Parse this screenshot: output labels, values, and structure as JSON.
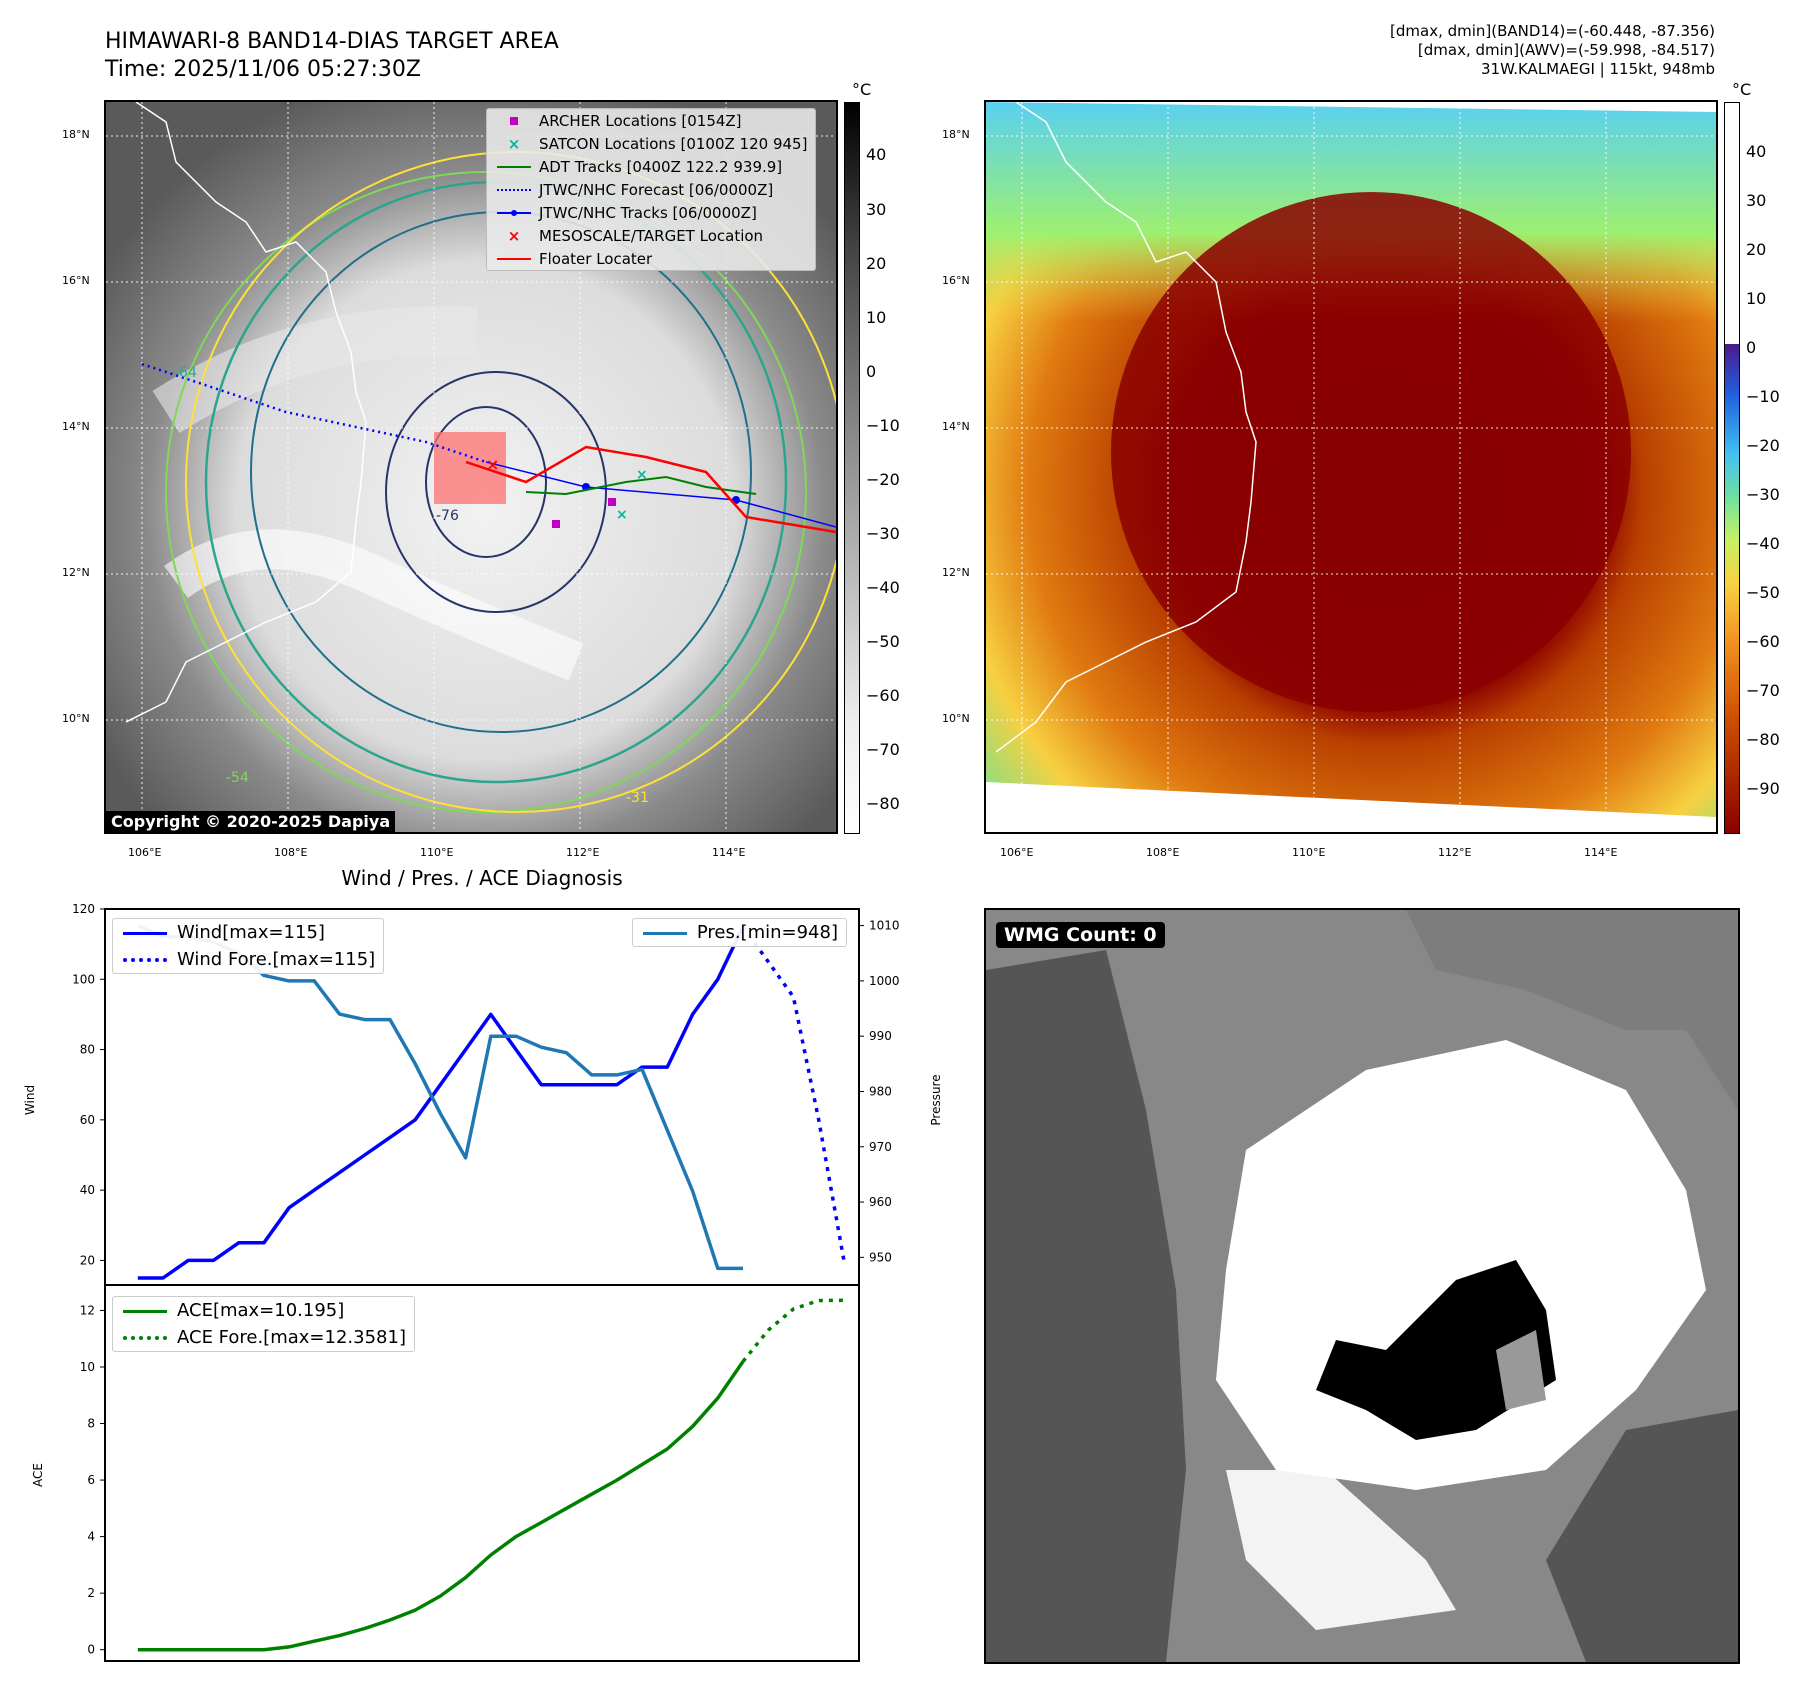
{
  "header": {
    "title_line1": "HIMAWARI-8 BAND14-DIAS TARGET AREA",
    "title_line2": "Time: 2025/11/06 05:27:30Z",
    "info_line1": "[dmax, dmin](BAND14)=(-60.448, -87.356)",
    "info_line2": "[dmax, dmin](AWV)=(-59.998, -84.517)",
    "info_line3": "31W.KALMAEGI | 115kt, 948mb"
  },
  "map_axes": {
    "lon_labels": [
      "106°E",
      "108°E",
      "110°E",
      "112°E",
      "114°E"
    ],
    "lat_labels": [
      "18°N",
      "16°N",
      "14°N",
      "12°N",
      "10°N"
    ]
  },
  "ir_panel": {
    "legend": [
      {
        "label": "ARCHER Locations [0154Z]",
        "symbol": "square",
        "color": "#c000c0"
      },
      {
        "label": "SATCON Locations [0100Z 120 945]",
        "symbol": "x",
        "color": "#00b8a0"
      },
      {
        "label": "ADT Tracks [0400Z 122.2 939.9]",
        "symbol": "line",
        "color": "#008000"
      },
      {
        "label": "JTWC/NHC Forecast [06/0000Z]",
        "symbol": "dotted",
        "color": "#0000ff"
      },
      {
        "label": "JTWC/NHC Tracks [06/0000Z]",
        "symbol": "line-dot",
        "color": "#0000ff"
      },
      {
        "label": "MESOSCALE/TARGET Location",
        "symbol": "x",
        "color": "#ff0000"
      },
      {
        "label": "Floater Locater",
        "symbol": "line",
        "color": "#ff0000"
      }
    ],
    "contour_labels": [
      "-64",
      "-54",
      "-31",
      "-76"
    ],
    "copyright": "Copyright © 2020-2025 Dapiya",
    "colorbar_unit": "°C",
    "colorbar_ticks": [
      "40",
      "30",
      "20",
      "10",
      "0",
      "−10",
      "−20",
      "−30",
      "−40",
      "−50",
      "−60",
      "−70",
      "−80"
    ]
  },
  "awv_panel": {
    "colorbar_unit": "°C",
    "colorbar_ticks": [
      "40",
      "30",
      "20",
      "10",
      "0",
      "−10",
      "−20",
      "−30",
      "−40",
      "−50",
      "−60",
      "−70",
      "−80",
      "−90"
    ]
  },
  "wmg_panel": {
    "badge": "WMG Count: 0"
  },
  "chart_data": [
    {
      "type": "line",
      "title": "Wind / Pres. / ACE Diagnosis",
      "ylabel": "Wind",
      "ylabel_right": "Pressure",
      "ylim": [
        13,
        120
      ],
      "ylim_right": [
        945,
        1013
      ],
      "xlim": [
        -1.3,
        28.6
      ],
      "yticks": [
        20,
        40,
        60,
        80,
        100,
        120
      ],
      "yticks_right": [
        950,
        960,
        970,
        980,
        990,
        1000,
        1010
      ],
      "series": [
        {
          "name": "Wind[max=115]",
          "axis": "left",
          "color": "#0000ff",
          "style": "solid",
          "x": [
            0,
            1,
            2,
            3,
            4,
            5,
            6,
            7,
            8,
            9,
            10,
            11,
            12,
            13,
            14,
            15,
            16,
            17,
            18,
            19,
            20,
            21,
            22,
            23,
            24
          ],
          "values": [
            15,
            15,
            20,
            20,
            25,
            25,
            35,
            40,
            45,
            50,
            55,
            60,
            70,
            80,
            90,
            80,
            70,
            70,
            70,
            70,
            75,
            75,
            90,
            100,
            115
          ]
        },
        {
          "name": "Wind Fore.[max=115]",
          "axis": "left",
          "color": "#0000ff",
          "style": "dotted",
          "x": [
            24,
            25,
            26,
            27,
            28
          ],
          "values": [
            115,
            105,
            95,
            60,
            20
          ]
        },
        {
          "name": "Pres.[min=948]",
          "axis": "right",
          "color": "#1f77b4",
          "style": "solid",
          "x": [
            0,
            1,
            2,
            3,
            4,
            5,
            6,
            7,
            8,
            9,
            10,
            11,
            12,
            13,
            14,
            15,
            16,
            17,
            18,
            19,
            20,
            21,
            22,
            23,
            24
          ],
          "values": [
            1010,
            1008,
            1008,
            1007,
            1005,
            1001,
            1000,
            1000,
            994,
            993,
            993,
            985,
            976,
            968,
            990,
            990,
            988,
            987,
            983,
            983,
            984,
            973,
            962,
            948,
            948
          ]
        }
      ]
    },
    {
      "type": "line",
      "ylabel": "ACE",
      "ylim": [
        -0.4,
        12.9
      ],
      "xlim": [
        -1.3,
        28.6
      ],
      "yticks": [
        0,
        2,
        4,
        6,
        8,
        10,
        12
      ],
      "series": [
        {
          "name": "ACE[max=10.195]",
          "color": "#008000",
          "style": "solid",
          "x": [
            0,
            1,
            2,
            3,
            4,
            5,
            6,
            7,
            8,
            9,
            10,
            11,
            12,
            13,
            14,
            15,
            16,
            17,
            18,
            19,
            20,
            21,
            22,
            23,
            24
          ],
          "values": [
            0,
            0,
            0,
            0,
            0,
            0,
            0.1,
            0.3,
            0.5,
            0.75,
            1.05,
            1.4,
            1.9,
            2.55,
            3.35,
            4.0,
            4.5,
            5.0,
            5.5,
            6.0,
            6.55,
            7.1,
            7.9,
            8.9,
            10.195
          ]
        },
        {
          "name": "ACE Fore.[max=12.3581]",
          "color": "#008000",
          "style": "dotted",
          "x": [
            24,
            25,
            26,
            27,
            28
          ],
          "values": [
            10.195,
            11.3,
            12.05,
            12.35,
            12.36
          ]
        }
      ]
    }
  ]
}
